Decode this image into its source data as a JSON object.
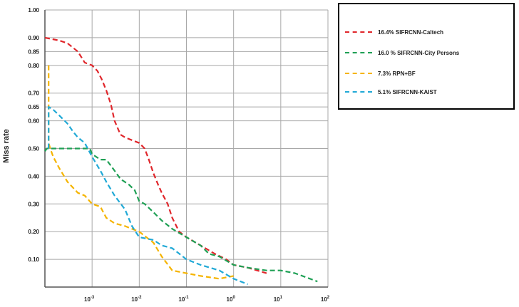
{
  "chart_data": {
    "type": "line",
    "title": "",
    "xlabel": "",
    "ylabel": "Miss rate",
    "x_scale": "log",
    "xlim": [
      0.0001,
      100
    ],
    "ylim": [
      0,
      1.0
    ],
    "grid": true,
    "legend_position": "top-right",
    "y_ticks": [
      {
        "value": 0.1,
        "label": "0.10"
      },
      {
        "value": 0.2,
        "label": "0.20"
      },
      {
        "value": 0.3,
        "label": "0.30"
      },
      {
        "value": 0.4,
        "label": "0.40"
      },
      {
        "value": 0.5,
        "label": "0.50"
      },
      {
        "value": 0.6,
        "label": "0.60"
      },
      {
        "value": 0.65,
        "label": "0.65"
      },
      {
        "value": 0.7,
        "label": "0.70"
      },
      {
        "value": 0.8,
        "label": "0.80"
      },
      {
        "value": 0.85,
        "label": "0.85"
      },
      {
        "value": 0.9,
        "label": "0.90"
      },
      {
        "value": 1.0,
        "label": "1.00"
      }
    ],
    "x_ticks": [
      {
        "value": 0.001,
        "base": "10",
        "exp": "-3"
      },
      {
        "value": 0.01,
        "base": "10",
        "exp": "-2"
      },
      {
        "value": 0.1,
        "base": "10",
        "exp": "-1"
      },
      {
        "value": 1,
        "base": "10",
        "exp": "0"
      },
      {
        "value": 10,
        "base": "10",
        "exp": "1"
      },
      {
        "value": 100,
        "base": "10",
        "exp": "2"
      }
    ],
    "series": [
      {
        "name": "16.4% SIFRCNN-Caltech",
        "color": "#e0262b",
        "x": [
          0.0001,
          0.0002,
          0.0003,
          0.0005,
          0.0007,
          0.001,
          0.0013,
          0.0016,
          0.002,
          0.0025,
          0.003,
          0.004,
          0.005,
          0.007,
          0.01,
          0.013,
          0.016,
          0.02,
          0.025,
          0.03,
          0.04,
          0.05,
          0.07,
          0.1,
          0.2,
          0.4,
          0.7,
          1,
          2,
          5
        ],
        "y": [
          0.9,
          0.89,
          0.88,
          0.85,
          0.81,
          0.8,
          0.78,
          0.75,
          0.71,
          0.66,
          0.6,
          0.55,
          0.54,
          0.53,
          0.52,
          0.5,
          0.46,
          0.41,
          0.37,
          0.34,
          0.3,
          0.25,
          0.2,
          0.18,
          0.15,
          0.12,
          0.1,
          0.08,
          0.07,
          0.05
        ]
      },
      {
        "name": "16.0 % SIFRCNN-City Persons",
        "color": "#1fa055",
        "x": [
          0.0001,
          0.00011,
          0.0002,
          0.0005,
          0.0009,
          0.001,
          0.0015,
          0.002,
          0.003,
          0.004,
          0.006,
          0.008,
          0.01,
          0.013,
          0.02,
          0.03,
          0.05,
          0.1,
          0.2,
          0.3,
          0.5,
          1,
          2,
          5,
          10,
          20,
          60
        ],
        "y": [
          0.49,
          0.5,
          0.5,
          0.5,
          0.5,
          0.48,
          0.46,
          0.46,
          0.42,
          0.39,
          0.37,
          0.35,
          0.31,
          0.3,
          0.27,
          0.24,
          0.21,
          0.18,
          0.15,
          0.12,
          0.11,
          0.08,
          0.07,
          0.06,
          0.06,
          0.05,
          0.02
        ]
      },
      {
        "name": "7.3% RPN+BF",
        "color": "#f5b400",
        "x": [
          0.00012,
          0.00012,
          0.00013,
          0.00015,
          0.0002,
          0.0003,
          0.0005,
          0.0007,
          0.001,
          0.0015,
          0.002,
          0.003,
          0.005,
          0.007,
          0.01,
          0.02,
          0.03,
          0.05,
          0.1,
          0.2,
          0.5,
          1
        ],
        "y": [
          0.8,
          0.52,
          0.5,
          0.47,
          0.43,
          0.38,
          0.34,
          0.33,
          0.3,
          0.29,
          0.25,
          0.23,
          0.22,
          0.21,
          0.2,
          0.16,
          0.11,
          0.06,
          0.05,
          0.04,
          0.03,
          0.04
        ]
      },
      {
        "name": "5.1% SIFRCNN-KAIST",
        "color": "#21a9d6",
        "x": [
          0.00012,
          0.00012,
          0.00015,
          0.0002,
          0.0003,
          0.0004,
          0.0005,
          0.0007,
          0.001,
          0.0015,
          0.002,
          0.003,
          0.005,
          0.007,
          0.01,
          0.02,
          0.03,
          0.05,
          0.1,
          0.2,
          0.5,
          1,
          2
        ],
        "y": [
          0.5,
          0.65,
          0.64,
          0.62,
          0.59,
          0.56,
          0.54,
          0.52,
          0.47,
          0.42,
          0.38,
          0.33,
          0.28,
          0.22,
          0.18,
          0.17,
          0.15,
          0.14,
          0.1,
          0.08,
          0.06,
          0.03,
          0.01
        ]
      }
    ]
  }
}
